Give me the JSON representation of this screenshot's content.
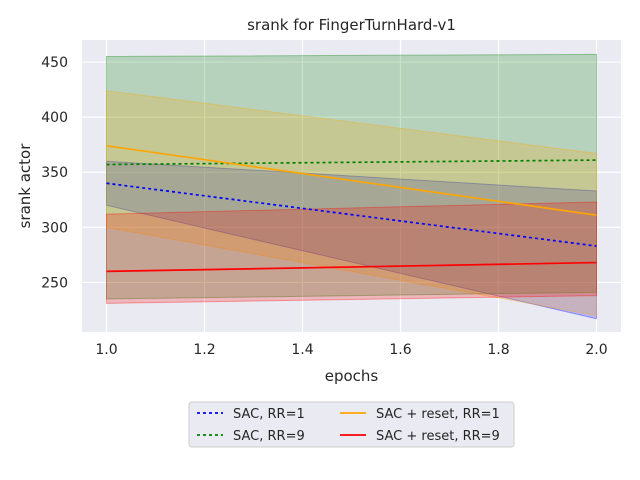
{
  "chart_data": {
    "type": "line",
    "title": "srank for FingerTurnHard-v1",
    "xlabel": "epochs",
    "ylabel": "srank actor",
    "xlim": [
      0.95,
      2.05
    ],
    "ylim": [
      205,
      470
    ],
    "xticks": [
      1.0,
      1.2,
      1.4,
      1.6,
      1.8,
      2.0
    ],
    "xtick_labels": [
      "1.0",
      "1.2",
      "1.4",
      "1.6",
      "1.8",
      "2.0"
    ],
    "yticks": [
      250,
      300,
      350,
      400,
      450
    ],
    "ytick_labels": [
      "250",
      "300",
      "350",
      "400",
      "450"
    ],
    "grid": true,
    "legend_position": "below",
    "x": [
      1.0,
      2.0
    ],
    "series": [
      {
        "name": "SAC, RR=1",
        "color": "#0000ff",
        "dash": "dotted",
        "values": [
          340,
          283
        ],
        "band_low": [
          320,
          217
        ],
        "band_high": [
          360,
          333
        ]
      },
      {
        "name": "SAC, RR=9",
        "color": "#008000",
        "dash": "dotted",
        "values": [
          357,
          361
        ],
        "band_low": [
          235,
          241
        ],
        "band_high": [
          455,
          457
        ]
      },
      {
        "name": "SAC + reset, RR=1",
        "color": "#ffa500",
        "dash": "solid",
        "values": [
          374,
          311
        ],
        "band_low": [
          300,
          220
        ],
        "band_high": [
          424,
          367
        ]
      },
      {
        "name": "SAC + reset, RR=9",
        "color": "#ff0000",
        "dash": "solid",
        "values": [
          260,
          268
        ],
        "band_low": [
          231,
          238
        ],
        "band_high": [
          312,
          323
        ]
      }
    ]
  }
}
